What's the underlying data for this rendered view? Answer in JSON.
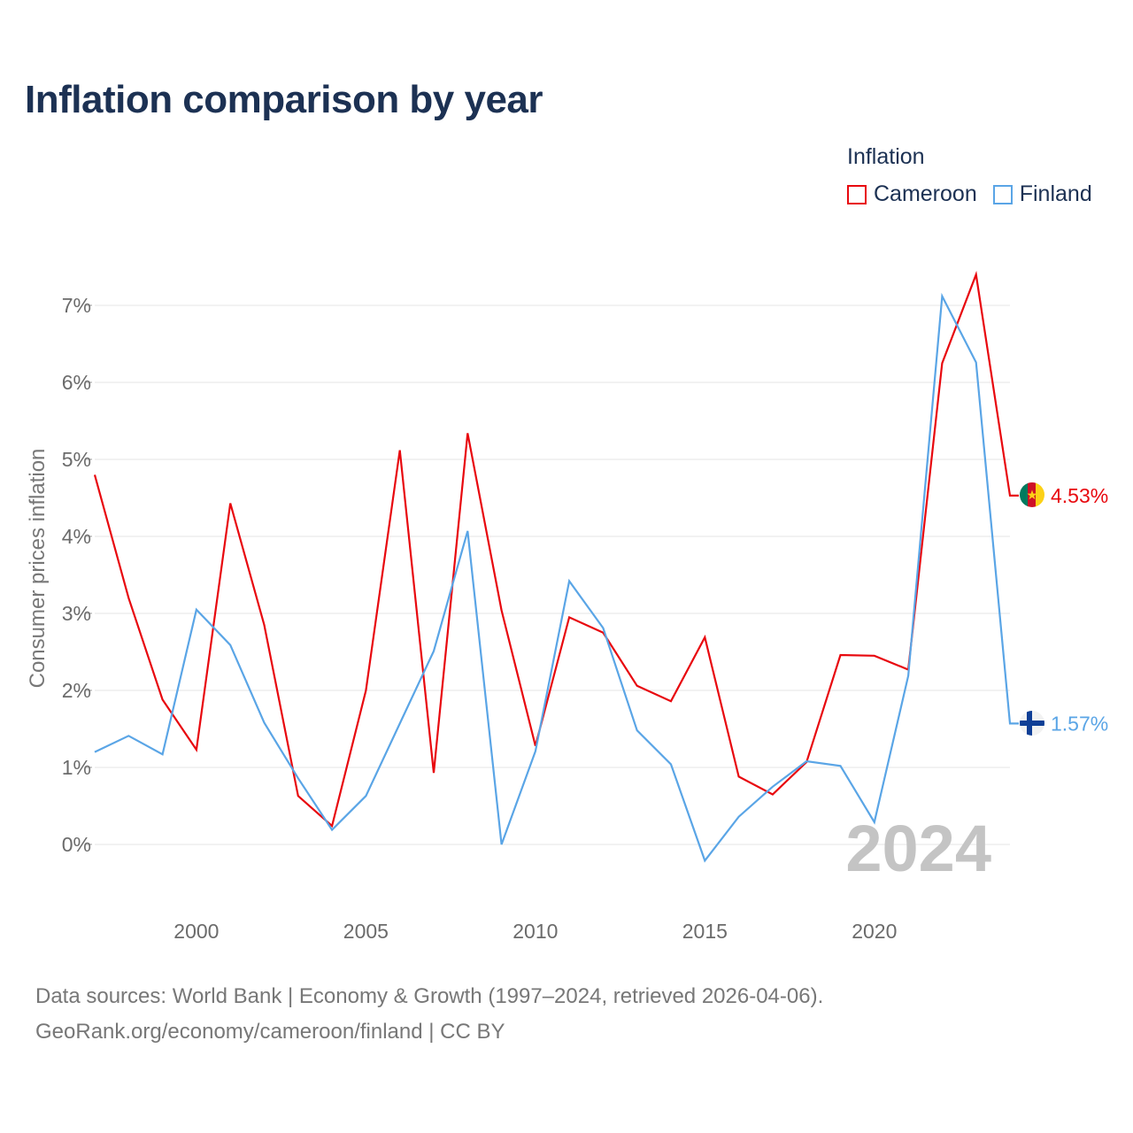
{
  "title": "Inflation comparison by year",
  "legend": {
    "title": "Inflation",
    "items": [
      {
        "label": "Cameroon",
        "color": "#e8080e"
      },
      {
        "label": "Finland",
        "color": "#5aa5e6"
      }
    ]
  },
  "source": {
    "line1": "Data sources: World Bank | Economy & Growth (1997–2024, retrieved 2026-04-06).",
    "line2": "GeoRank.org/economy/cameroon/finland | CC BY"
  },
  "chart_data": {
    "type": "line",
    "title": "Inflation comparison by year",
    "xlabel": "",
    "ylabel": "Consumer prices inflation",
    "x": [
      1997,
      1998,
      1999,
      2000,
      2001,
      2002,
      2003,
      2004,
      2005,
      2006,
      2007,
      2008,
      2009,
      2010,
      2011,
      2012,
      2013,
      2014,
      2015,
      2016,
      2017,
      2018,
      2019,
      2020,
      2021,
      2022,
      2023,
      2024
    ],
    "xlim": [
      1997,
      2024
    ],
    "ylim": [
      -0.5,
      7.5
    ],
    "x_ticks": [
      2000,
      2005,
      2010,
      2015,
      2020
    ],
    "x_tick_labels": [
      "2000",
      "2005",
      "2010",
      "2015",
      "2020"
    ],
    "y_ticks": [
      0,
      1,
      2,
      3,
      4,
      5,
      6,
      7
    ],
    "y_tick_labels": [
      "0%",
      "1%",
      "2%",
      "3%",
      "4%",
      "5%",
      "6%",
      "7%"
    ],
    "grid": true,
    "legend": "top-right",
    "year_label": "2024",
    "series": [
      {
        "name": "Cameroon",
        "color": "#e8080e",
        "end_label": "4.53%",
        "values": [
          4.8,
          3.2,
          1.88,
          1.23,
          4.43,
          2.85,
          0.63,
          0.24,
          2.0,
          5.12,
          0.93,
          5.34,
          3.04,
          1.28,
          2.95,
          2.75,
          2.06,
          1.86,
          2.69,
          0.88,
          0.65,
          1.07,
          2.46,
          2.45,
          2.27,
          6.25,
          7.4,
          4.53
        ]
      },
      {
        "name": "Finland",
        "color": "#5aa5e6",
        "end_label": "1.57%",
        "values": [
          1.2,
          1.41,
          1.17,
          3.05,
          2.59,
          1.58,
          0.86,
          0.19,
          0.63,
          1.57,
          2.51,
          4.07,
          0.0,
          1.21,
          3.42,
          2.81,
          1.48,
          1.04,
          -0.21,
          0.36,
          0.75,
          1.08,
          1.02,
          0.29,
          2.19,
          7.12,
          6.26,
          1.57
        ]
      }
    ]
  }
}
